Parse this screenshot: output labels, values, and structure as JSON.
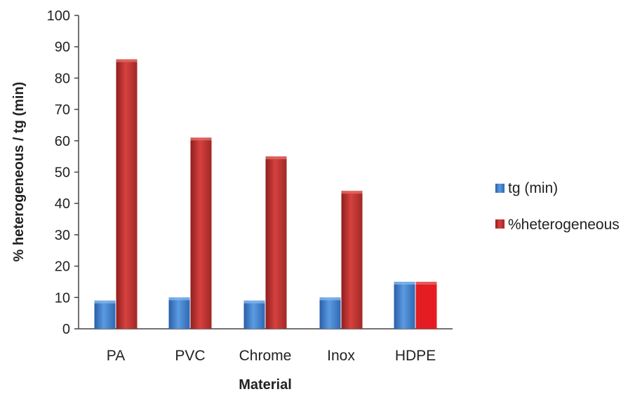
{
  "chart_data": {
    "type": "bar",
    "title": "",
    "xlabel": "Material",
    "ylabel": "% heterogeneous / tg (min)",
    "ylim": [
      0,
      100
    ],
    "yticks": [
      0,
      10,
      20,
      30,
      40,
      50,
      60,
      70,
      80,
      90,
      100
    ],
    "grid": false,
    "legend_position": "right",
    "categories": [
      "PA",
      "PVC",
      "Chrome",
      "Inox",
      "HDPE"
    ],
    "series": [
      {
        "name": "tg (min)",
        "color": "#3a78c4",
        "values": [
          9,
          10,
          9,
          10,
          15
        ]
      },
      {
        "name": "%heterogeneous",
        "color": "#b5302e",
        "values": [
          86,
          61,
          55,
          44,
          15
        ]
      }
    ]
  }
}
